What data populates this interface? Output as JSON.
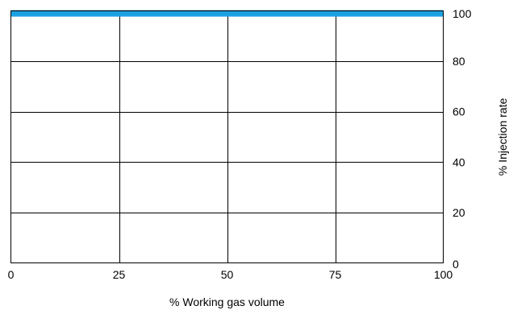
{
  "chart_data": {
    "type": "line",
    "xlabel": "% Working gas volume",
    "ylabel": "% Injection rate",
    "xlim": [
      0,
      100
    ],
    "ylim": [
      0,
      100
    ],
    "x_ticks": [
      0,
      25,
      50,
      75,
      100
    ],
    "y_ticks": [
      0,
      20,
      40,
      60,
      80,
      100
    ],
    "y_axis_side": "right",
    "grid": true,
    "legend": "none",
    "series": [
      {
        "x": [
          0,
          100
        ],
        "y": [
          99,
          99
        ],
        "color": "#1ba1e2"
      }
    ]
  }
}
